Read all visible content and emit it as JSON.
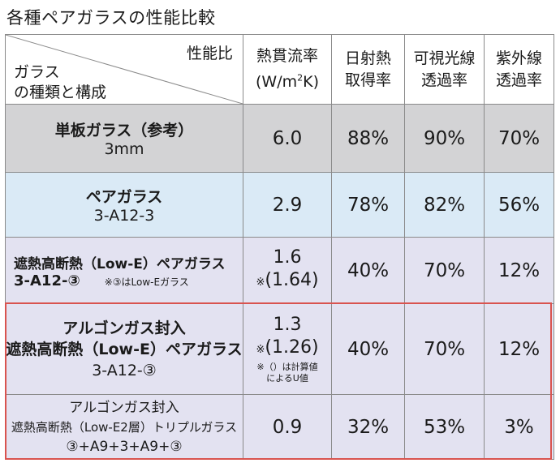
{
  "title": "各種ペアガラスの性能比較",
  "header": {
    "corner_top": "性能比",
    "corner_bottom_line1": "ガラス",
    "corner_bottom_line2": "の種類と構成",
    "col1_line1": "熱貫流率",
    "col1_line2_pre": "(W/m",
    "col1_line2_sup": "2",
    "col1_line2_post": "K)",
    "col2_line1": "日射熱",
    "col2_line2": "取得率",
    "col3_line1": "可視光線",
    "col3_line2": "透過率",
    "col4_line1": "紫外線",
    "col4_line2": "透過率"
  },
  "rows": [
    {
      "name_line1": "単板ガラス（参考）",
      "name_line2": "3mm",
      "u_value": "6.0",
      "solar": "88%",
      "visible": "90%",
      "uv": "70%"
    },
    {
      "name_line1": "ペアガラス",
      "name_line2": "3-A12-3",
      "u_value": "2.9",
      "solar": "78%",
      "visible": "82%",
      "uv": "56%"
    },
    {
      "name_line1": "遮熱高断熱（Low-E）ペアガラス",
      "name_line2": "3-A12-③",
      "name_note": "※③はLow-Eガラス",
      "u_value": "1.6",
      "u_value_calc_mark": "※",
      "u_value_calc": "(1.64)",
      "solar": "40%",
      "visible": "70%",
      "uv": "12%"
    },
    {
      "name_line1": "アルゴンガス封入",
      "name_line2": "遮熱高断熱（Low-E）ペアガラス",
      "name_line3": "3-A12-③",
      "u_value": "1.3",
      "u_value_calc_mark": "※",
      "u_value_calc": "(1.26)",
      "u_note_line1": "※（）は計算値",
      "u_note_line2": "によるU値",
      "solar": "40%",
      "visible": "70%",
      "uv": "12%"
    },
    {
      "name_line1": "アルゴンガス封入",
      "name_line2": "遮熱高断熱（Low-E2層）トリプルガラス",
      "name_line3": "③+A9+3+A9+③",
      "u_value": "0.9",
      "solar": "32%",
      "visible": "53%",
      "uv": "3%"
    }
  ],
  "colors": {
    "row_reference": "#d3d3d5",
    "row_pair": "#daeaf6",
    "row_lowe": "#e3e2f1",
    "highlight_frame": "#d9534f"
  }
}
